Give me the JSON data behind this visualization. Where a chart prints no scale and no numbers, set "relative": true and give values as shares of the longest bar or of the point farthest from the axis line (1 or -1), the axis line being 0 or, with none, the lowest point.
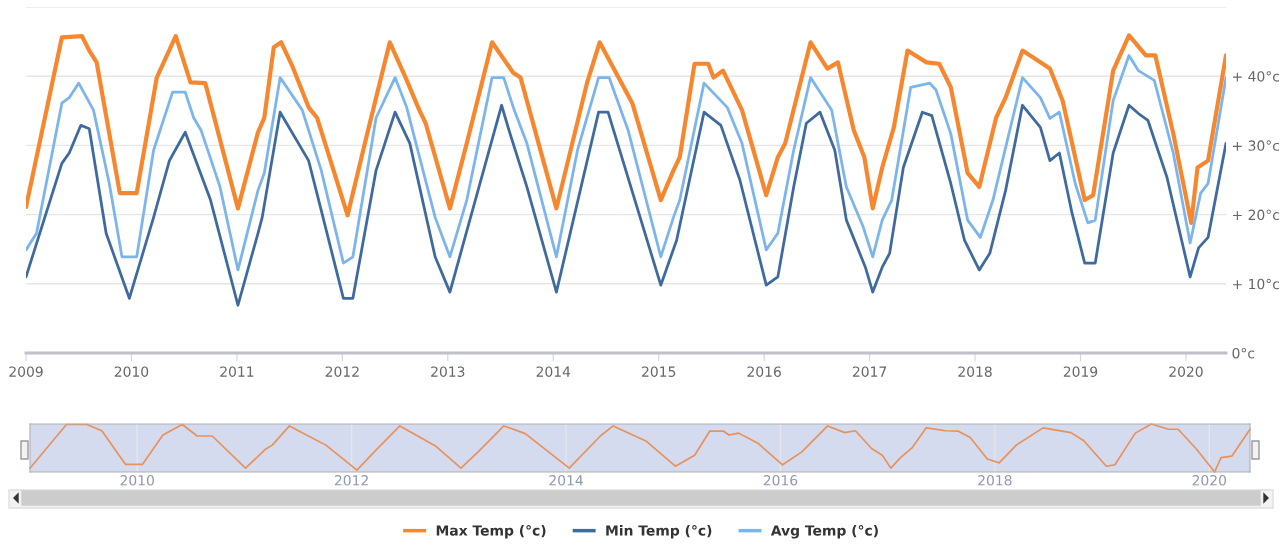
{
  "chart_data": [
    {
      "type": "line",
      "xlim": [
        2009.0,
        2020.38
      ],
      "xticks": [
        2009,
        2010,
        2011,
        2012,
        2013,
        2014,
        2015,
        2016,
        2017,
        2018,
        2019,
        2020
      ],
      "ylim": [
        0,
        50
      ],
      "yticks": [
        {
          "value": 0,
          "label": "0°c"
        },
        {
          "value": 10,
          "label": "+ 10°c"
        },
        {
          "value": 20,
          "label": "+ 20°c"
        },
        {
          "value": 30,
          "label": "+ 30°c"
        },
        {
          "value": 40,
          "label": "+ 40°c"
        },
        {
          "value": 50,
          "label": null
        }
      ],
      "grid": "y",
      "legend": "bottom",
      "series": [
        {
          "name": "Max Temp (°c)",
          "color": "#f7872f",
          "x": [
            2009.0,
            2009.34,
            2009.53,
            2009.6,
            2009.67,
            2009.89,
            2010.05,
            2010.24,
            2010.42,
            2010.56,
            2010.7,
            2011.01,
            2011.2,
            2011.26,
            2011.35,
            2011.42,
            2011.53,
            2011.68,
            2011.76,
            2012.05,
            2012.22,
            2012.45,
            2012.6,
            2012.73,
            2012.79,
            2013.02,
            2013.18,
            2013.42,
            2013.62,
            2013.69,
            2014.03,
            2014.32,
            2014.44,
            2014.75,
            2015.02,
            2015.14,
            2015.2,
            2015.34,
            2015.47,
            2015.52,
            2015.61,
            2015.79,
            2016.02,
            2016.13,
            2016.2,
            2016.44,
            2016.6,
            2016.7,
            2016.85,
            2016.95,
            2017.03,
            2017.12,
            2017.23,
            2017.36,
            2017.54,
            2017.66,
            2017.77,
            2017.93,
            2018.04,
            2018.2,
            2018.29,
            2018.45,
            2018.71,
            2018.83,
            2019.04,
            2019.12,
            2019.31,
            2019.46,
            2019.62,
            2019.71,
            2019.88,
            2020.05,
            2020.11,
            2020.21,
            2020.38
          ],
          "values": [
            21.1,
            45.6,
            45.8,
            43.7,
            42,
            23.1,
            23.1,
            39.8,
            45.8,
            39.1,
            39,
            20.9,
            31.9,
            34,
            44.2,
            44.9,
            41.3,
            35.5,
            34,
            19.9,
            30.7,
            44.9,
            39.8,
            35.1,
            33.2,
            20.9,
            30.3,
            44.9,
            40.5,
            39.8,
            20.9,
            39,
            44.9,
            36.1,
            22.1,
            26.4,
            28.3,
            41.8,
            41.8,
            39.8,
            40.8,
            35.1,
            22.8,
            28.3,
            30.3,
            44.9,
            41.1,
            42,
            32.2,
            28.3,
            20.9,
            26.8,
            32.6,
            43.7,
            42,
            41.8,
            38.4,
            26,
            24,
            34,
            36.9,
            43.7,
            41.1,
            36.5,
            22.1,
            22.8,
            40.8,
            45.9,
            43,
            43,
            31.7,
            18.8,
            26.8,
            27.8,
            43
          ]
        },
        {
          "name": "Min Temp (°c)",
          "color": "#3f6aa0",
          "x": [
            2009.0,
            2009.34,
            2009.41,
            2009.52,
            2009.6,
            2009.76,
            2009.98,
            2010.21,
            2010.36,
            2010.51,
            2010.75,
            2011.01,
            2011.2,
            2011.24,
            2011.41,
            2011.68,
            2011.8,
            2012.01,
            2012.1,
            2012.32,
            2012.5,
            2012.64,
            2012.88,
            2013.02,
            2013.51,
            2013.58,
            2013.75,
            2014.03,
            2014.43,
            2014.52,
            2015.02,
            2015.17,
            2015.43,
            2015.59,
            2015.77,
            2016.02,
            2016.13,
            2016.28,
            2016.4,
            2016.53,
            2016.67,
            2016.78,
            2016.96,
            2017.03,
            2017.12,
            2017.19,
            2017.32,
            2017.5,
            2017.59,
            2017.77,
            2017.9,
            2018.04,
            2018.14,
            2018.29,
            2018.45,
            2018.62,
            2018.71,
            2018.8,
            2018.92,
            2019.04,
            2019.14,
            2019.31,
            2019.46,
            2019.55,
            2019.64,
            2019.82,
            2020.04,
            2020.12,
            2020.21,
            2020.38
          ],
          "values": [
            11,
            27.4,
            28.9,
            32.9,
            32.4,
            17.3,
            7.9,
            19.6,
            27.8,
            31.9,
            22.1,
            6.9,
            17.3,
            19.6,
            34.8,
            27.8,
            20.6,
            7.9,
            7.9,
            26.4,
            34.8,
            30.3,
            13.9,
            8.8,
            35.8,
            32.2,
            24,
            8.8,
            34.8,
            34.8,
            9.8,
            16.3,
            34.8,
            32.9,
            25,
            9.8,
            11,
            24,
            33.2,
            34.8,
            29.3,
            19.2,
            12.4,
            8.8,
            12.4,
            14.4,
            26.8,
            34.8,
            34.3,
            24.5,
            16.3,
            12,
            14.4,
            23.5,
            35.8,
            32.6,
            27.8,
            28.9,
            20.2,
            13,
            13,
            28.9,
            35.8,
            34.6,
            33.6,
            25.4,
            11,
            15.2,
            16.7,
            30.3
          ]
        },
        {
          "name": "Avg Temp (°c)",
          "color": "#7cb5ec",
          "x": [
            2009.0,
            2009.1,
            2009.34,
            2009.41,
            2009.5,
            2009.64,
            2009.79,
            2009.91,
            2010.05,
            2010.21,
            2010.39,
            2010.51,
            2010.59,
            2010.66,
            2010.84,
            2011.01,
            2011.2,
            2011.26,
            2011.41,
            2011.62,
            2011.8,
            2012.01,
            2012.1,
            2012.32,
            2012.5,
            2012.61,
            2012.88,
            2013.02,
            2013.18,
            2013.42,
            2013.53,
            2013.63,
            2013.75,
            2014.03,
            2014.23,
            2014.43,
            2014.53,
            2014.71,
            2015.02,
            2015.14,
            2015.2,
            2015.43,
            2015.65,
            2015.79,
            2016.02,
            2016.13,
            2016.28,
            2016.44,
            2016.64,
            2016.78,
            2016.94,
            2017.03,
            2017.12,
            2017.21,
            2017.39,
            2017.57,
            2017.63,
            2017.77,
            2017.93,
            2018.05,
            2018.17,
            2018.45,
            2018.62,
            2018.71,
            2018.8,
            2018.95,
            2019.07,
            2019.14,
            2019.31,
            2019.46,
            2019.55,
            2019.7,
            2019.88,
            2020.04,
            2020.14,
            2020.21,
            2020.38
          ],
          "values": [
            14.9,
            17.3,
            36.1,
            36.9,
            39,
            35.1,
            24.5,
            13.9,
            13.9,
            29.3,
            37.7,
            37.7,
            34,
            32.2,
            24,
            12,
            23.5,
            26,
            39.8,
            35.1,
            26.4,
            13,
            13.9,
            34,
            39.8,
            35.5,
            19.6,
            13.9,
            22.1,
            39.8,
            39.8,
            35.1,
            30.3,
            13.9,
            29.3,
            39.8,
            39.8,
            32.2,
            13.9,
            19.6,
            22.1,
            39,
            35.5,
            30.3,
            14.9,
            17.3,
            29.3,
            39.8,
            35.1,
            24,
            18.2,
            13.9,
            19.2,
            22.1,
            38.4,
            39,
            38,
            31.7,
            19.2,
            16.7,
            22.1,
            39.8,
            36.9,
            33.9,
            34.8,
            24.5,
            18.8,
            19.2,
            36.5,
            43,
            40.8,
            39.4,
            28.9,
            15.9,
            23.1,
            24.5,
            39.8
          ]
        }
      ]
    },
    {
      "type": "line",
      "relative": true,
      "tick_labels": "x",
      "grid": "x",
      "xlim": [
        2009.0,
        2020.38
      ],
      "xticks": [
        2010,
        2012,
        2014,
        2016,
        2018,
        2020
      ],
      "series": [
        {
          "color": "#e8915a",
          "x": [
            2009.0,
            2009.34,
            2009.53,
            2009.67,
            2009.89,
            2010.05,
            2010.24,
            2010.42,
            2010.56,
            2010.7,
            2011.01,
            2011.2,
            2011.26,
            2011.42,
            2011.53,
            2011.76,
            2012.05,
            2012.22,
            2012.45,
            2012.6,
            2012.79,
            2013.02,
            2013.18,
            2013.42,
            2013.62,
            2014.03,
            2014.32,
            2014.44,
            2014.75,
            2015.02,
            2015.2,
            2015.34,
            2015.47,
            2015.52,
            2015.61,
            2015.79,
            2016.02,
            2016.2,
            2016.44,
            2016.6,
            2016.7,
            2016.85,
            2016.95,
            2017.03,
            2017.12,
            2017.23,
            2017.36,
            2017.54,
            2017.66,
            2017.77,
            2017.93,
            2018.04,
            2018.2,
            2018.45,
            2018.71,
            2018.83,
            2019.04,
            2019.12,
            2019.31,
            2019.46,
            2019.62,
            2019.71,
            2019.88,
            2020.05,
            2020.11,
            2020.21,
            2020.38
          ],
          "values": [
            0.08,
            0.99,
            0.99,
            0.86,
            0.16,
            0.16,
            0.77,
            0.99,
            0.75,
            0.75,
            0.08,
            0.48,
            0.56,
            0.96,
            0.83,
            0.56,
            0.04,
            0.44,
            0.96,
            0.77,
            0.53,
            0.08,
            0.42,
            0.96,
            0.8,
            0.08,
            0.75,
            0.96,
            0.64,
            0.12,
            0.35,
            0.85,
            0.85,
            0.77,
            0.81,
            0.6,
            0.15,
            0.42,
            0.96,
            0.82,
            0.86,
            0.49,
            0.35,
            0.08,
            0.3,
            0.51,
            0.92,
            0.86,
            0.85,
            0.72,
            0.27,
            0.19,
            0.56,
            0.92,
            0.82,
            0.65,
            0.12,
            0.15,
            0.81,
            1,
            0.89,
            0.89,
            0.48,
            0,
            0.3,
            0.33,
            0.89
          ]
        }
      ]
    }
  ]
}
